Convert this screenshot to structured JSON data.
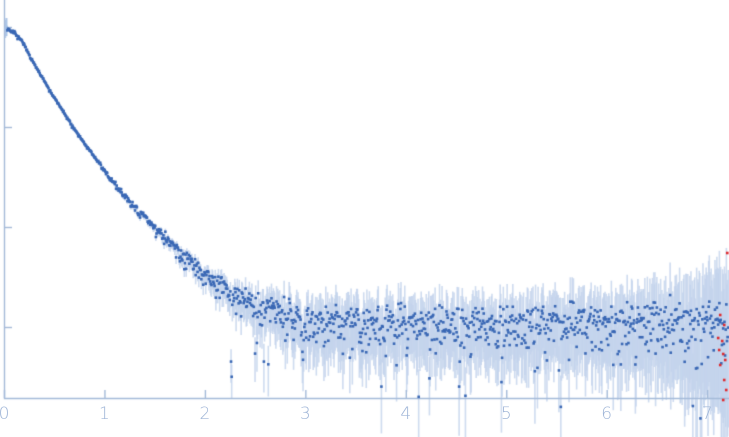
{
  "figure": {
    "background": "#ffffff"
  },
  "chart_data": {
    "type": "scatter",
    "title": "",
    "subtitle": "",
    "xlabel": "",
    "ylabel": "",
    "legend": "none",
    "grid": "off",
    "x_range": [
      0,
      7.25
    ],
    "x_tick_values": [
      0,
      1,
      2,
      3,
      4,
      5,
      6,
      7
    ],
    "x_tick_labels": [
      "0",
      "1",
      "2",
      "3",
      "4",
      "5",
      "6",
      "7"
    ],
    "y_scale": "log, unlabeled ticks, 1 decade per tick",
    "y_tick_decades": [
      0,
      1,
      2,
      3
    ],
    "axis_color": "#a5bbd9",
    "tick_label_color": "#9fb5d7",
    "series": [
      {
        "name": "experimental-saxs-intensity",
        "marker": "square-dot",
        "marker_color": "#3a68b5",
        "error_bar_color": "#c3d3ec",
        "first_points_color": "#a9c3e6",
        "n_points": 1145,
        "q_start": 0.015,
        "q_end": 7.21,
        "mean_curve_logI": [
          [
            0.01,
            2.99
          ],
          [
            0.06,
            2.97
          ],
          [
            0.11,
            2.94
          ],
          [
            0.2,
            2.83
          ],
          [
            0.26,
            2.7
          ],
          [
            0.41,
            2.44
          ],
          [
            0.56,
            2.2
          ],
          [
            0.76,
            1.89
          ],
          [
            0.96,
            1.62
          ],
          [
            1.15,
            1.37
          ],
          [
            1.35,
            1.15
          ],
          [
            1.55,
            0.94
          ],
          [
            1.75,
            0.75
          ],
          [
            1.95,
            0.57
          ],
          [
            2.15,
            0.42
          ],
          [
            2.35,
            0.3
          ],
          [
            2.55,
            0.21
          ],
          [
            2.75,
            0.14
          ],
          [
            2.95,
            0.09
          ],
          [
            3.24,
            0.05
          ],
          [
            3.74,
            0.03
          ],
          [
            4.93,
            0.03
          ],
          [
            7.21,
            0.02
          ]
        ],
        "scatter_sigma_logI": [
          [
            0.0,
            0.008
          ],
          [
            0.9,
            0.008
          ],
          [
            1.3,
            0.018
          ],
          [
            1.7,
            0.035
          ],
          [
            2.0,
            0.055
          ],
          [
            2.4,
            0.075
          ],
          [
            2.8,
            0.095
          ],
          [
            3.2,
            0.1
          ],
          [
            4.0,
            0.1
          ],
          [
            5.0,
            0.11
          ],
          [
            6.0,
            0.12
          ],
          [
            6.8,
            0.14
          ],
          [
            7.25,
            0.16
          ]
        ],
        "error_halfwidth_logI": [
          [
            0.0,
            0.012
          ],
          [
            1.0,
            0.016
          ],
          [
            1.5,
            0.03
          ],
          [
            2.0,
            0.08
          ],
          [
            2.4,
            0.15
          ],
          [
            2.8,
            0.22
          ],
          [
            3.2,
            0.27
          ],
          [
            4.0,
            0.28
          ],
          [
            5.0,
            0.3
          ],
          [
            6.0,
            0.34
          ],
          [
            6.6,
            0.42
          ],
          [
            7.0,
            0.6
          ],
          [
            7.25,
            0.8
          ]
        ],
        "seed": 13
      },
      {
        "name": "flagged-outlier-points",
        "marker": "square-dot",
        "marker_color": "#dd2b30",
        "points_logI": [
          [
            7.2,
            0.74
          ],
          [
            7.13,
            0.12
          ],
          [
            7.17,
            0.02
          ],
          [
            7.11,
            -0.11
          ],
          [
            7.15,
            -0.14
          ],
          [
            7.12,
            -0.23
          ],
          [
            7.16,
            -0.27
          ],
          [
            7.18,
            -0.33
          ],
          [
            7.13,
            -0.38
          ],
          [
            7.17,
            -0.53
          ],
          [
            7.19,
            -0.63
          ],
          [
            7.16,
            -0.73
          ]
        ]
      }
    ]
  }
}
